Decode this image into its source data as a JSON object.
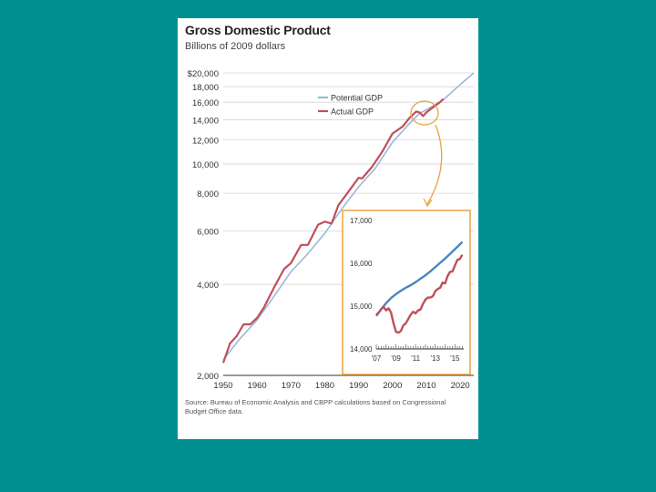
{
  "chart_data": [
    {
      "type": "line",
      "title": "Gross Domestic Product",
      "subtitle": "Billions of 2009 dollars",
      "source": "Source: Bureau of Economic Analysis and CBPP calculations based on Congressional Budget Office data.",
      "yscale": "log",
      "ylim": [
        2000,
        20000
      ],
      "xlim": [
        1950,
        2024
      ],
      "y_ticks": [
        2000,
        4000,
        6000,
        8000,
        10000,
        12000,
        14000,
        16000,
        18000,
        20000
      ],
      "y_tick_labels": [
        "2,000",
        "4,000",
        "6,000",
        "8,000",
        "10,000",
        "12,000",
        "14,000",
        "16,000",
        "18,000",
        "$20,000"
      ],
      "x_ticks": [
        1950,
        1960,
        1970,
        1980,
        1990,
        2000,
        2010,
        2020
      ],
      "x_tick_labels": [
        "1950",
        "1960",
        "1970",
        "1980",
        "1990",
        "2000",
        "2010",
        "2020"
      ],
      "grid": true,
      "legend": "top-right",
      "series": [
        {
          "name": "Potential GDP",
          "color": "#9bb8d8",
          "x": [
            1950,
            1955,
            1960,
            1965,
            1970,
            1975,
            1980,
            1985,
            1990,
            1995,
            2000,
            2005,
            2008,
            2010,
            2015,
            2020,
            2024
          ],
          "y": [
            2250,
            2650,
            3050,
            3650,
            4400,
            5050,
            5900,
            7100,
            8400,
            9700,
            11800,
            13600,
            14700,
            15100,
            16300,
            18300,
            20000
          ]
        },
        {
          "name": "Actual GDP",
          "color": "#c0505a",
          "x": [
            1950,
            1952,
            1954,
            1956,
            1958,
            1960,
            1962,
            1965,
            1968,
            1970,
            1973,
            1975,
            1978,
            1980,
            1982,
            1984,
            1987,
            1990,
            1991,
            1994,
            1997,
            2000,
            2003,
            2005,
            2007,
            2008,
            2009,
            2010,
            2012,
            2014,
            2015
          ],
          "y": [
            2200,
            2550,
            2700,
            2950,
            2950,
            3100,
            3350,
            3900,
            4500,
            4700,
            5400,
            5400,
            6300,
            6450,
            6350,
            7300,
            8100,
            9000,
            8950,
            9800,
            11000,
            12600,
            13300,
            14200,
            14900,
            14800,
            14400,
            14800,
            15400,
            16000,
            16400
          ]
        }
      ]
    },
    {
      "type": "line",
      "title": "",
      "ylim": [
        14000,
        17000
      ],
      "xlim": [
        2007,
        2015.9
      ],
      "y_ticks": [
        14000,
        15000,
        16000,
        17000
      ],
      "y_tick_labels": [
        "14,000",
        "15,000",
        "16,000",
        "17,000"
      ],
      "x_ticks": [
        2007,
        2009,
        2011,
        2013,
        2015
      ],
      "x_tick_labels": [
        "'07",
        "'09",
        "'11",
        "'13",
        "'15"
      ],
      "grid": false,
      "series": [
        {
          "name": "Potential GDP",
          "color": "#4a86bf",
          "x": [
            2007,
            2007.5,
            2008,
            2008.5,
            2009,
            2009.5,
            2010,
            2010.5,
            2011,
            2011.5,
            2012,
            2012.5,
            2013,
            2013.5,
            2014,
            2014.5,
            2015,
            2015.5,
            2015.75
          ],
          "y": [
            14770,
            14930,
            15070,
            15190,
            15280,
            15360,
            15430,
            15490,
            15560,
            15640,
            15720,
            15810,
            15910,
            16010,
            16110,
            16220,
            16330,
            16440,
            16500
          ]
        },
        {
          "name": "Actual GDP",
          "color": "#c0505a",
          "x": [
            2007,
            2007.25,
            2007.5,
            2007.75,
            2008,
            2008.25,
            2008.5,
            2008.75,
            2009,
            2009.25,
            2009.5,
            2009.75,
            2010,
            2010.25,
            2010.5,
            2010.75,
            2011,
            2011.25,
            2011.5,
            2011.75,
            2012,
            2012.25,
            2012.5,
            2012.75,
            2013,
            2013.25,
            2013.5,
            2013.75,
            2014,
            2014.25,
            2014.5,
            2014.75,
            2015,
            2015.25,
            2015.5,
            2015.75
          ],
          "y": [
            14800,
            14850,
            14930,
            14980,
            14900,
            14950,
            14850,
            14600,
            14400,
            14380,
            14420,
            14550,
            14600,
            14700,
            14800,
            14870,
            14830,
            14900,
            14920,
            15050,
            15150,
            15200,
            15200,
            15230,
            15350,
            15400,
            15430,
            15550,
            15530,
            15700,
            15800,
            15810,
            15950,
            16080,
            16100,
            16200
          ]
        }
      ]
    }
  ]
}
